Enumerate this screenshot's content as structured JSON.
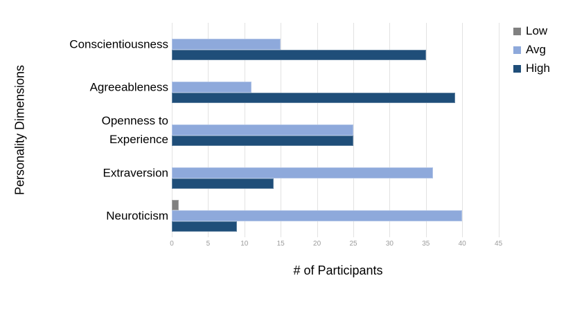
{
  "chart_data": {
    "type": "bar",
    "orientation": "horizontal",
    "title": "",
    "xlabel": "# of Participants",
    "ylabel": "Personality Dimensions",
    "categories": [
      "Conscientiousness",
      "Agreeableness",
      "Openness to Experience",
      "Extraversion",
      "Neuroticism"
    ],
    "series": [
      {
        "name": "Low",
        "color": "#808080",
        "values": [
          0,
          0,
          0,
          0,
          1
        ]
      },
      {
        "name": "Avg",
        "color": "#8EA9DB",
        "values": [
          15,
          11,
          25,
          36,
          40
        ]
      },
      {
        "name": "High",
        "color": "#1F4E79",
        "values": [
          35,
          39,
          25,
          14,
          9
        ]
      }
    ],
    "xlim": [
      0,
      45
    ],
    "xticks": [
      0,
      5,
      10,
      15,
      20,
      25,
      30,
      35,
      40,
      45
    ],
    "grid": true,
    "gridline_color": "#e2e2e2",
    "tick_label_color": "#9b9b9b",
    "legend_position": "top-right",
    "background_color": "#ffffff"
  }
}
